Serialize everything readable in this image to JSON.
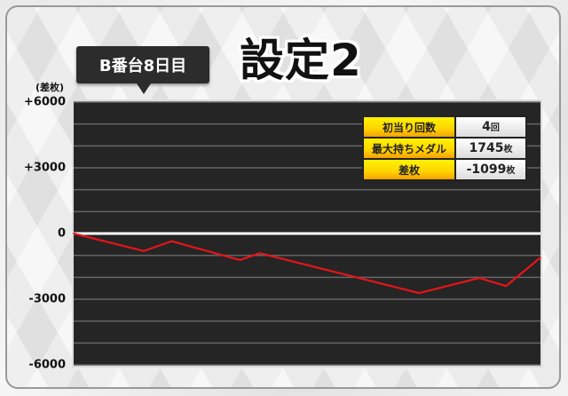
{
  "header": {
    "title": "設定2",
    "machine_label": "B番台8日目"
  },
  "stats": [
    {
      "label": "初当り回数",
      "value": "4",
      "unit": "回"
    },
    {
      "label": "最大持ちメダル",
      "value": "1745",
      "unit": "枚"
    },
    {
      "label": "差枚",
      "value": "-1099",
      "unit": "枚"
    }
  ],
  "colors": {
    "background": "#252525",
    "line": "#e8141a",
    "zero_line": "#ffffff",
    "grid": "#666666",
    "stat_key": "#ffe600"
  },
  "chart_data": {
    "type": "line",
    "ylabel": "(差枚)",
    "ylim": [
      -6000,
      6000
    ],
    "yticks": [
      6000,
      3000,
      0,
      -3000,
      -6000
    ],
    "ytick_labels": [
      "+6000",
      "+3000",
      "0",
      "-3000",
      "-6000"
    ],
    "grid": true,
    "grid_step": 1000,
    "x": [
      0,
      150,
      210,
      356,
      399,
      740,
      869,
      926,
      1000
    ],
    "values": [
      0,
      -800,
      -350,
      -1210,
      -900,
      -2720,
      -2030,
      -2400,
      -1099
    ]
  }
}
